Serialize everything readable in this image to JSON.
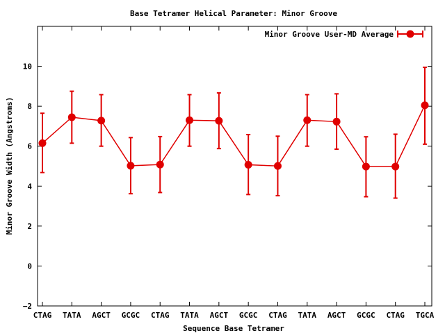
{
  "chart_data": {
    "type": "line",
    "title": "Base Tetramer Helical Parameter: Minor Groove",
    "xlabel": "Sequence Base Tetramer",
    "ylabel": "Minor Groove Width (Angstroms)",
    "ylim": [
      -2,
      12
    ],
    "yticks": [
      -2,
      0,
      2,
      4,
      6,
      8,
      10
    ],
    "grid": false,
    "legend_position": "top-right",
    "categories": [
      "CTAG",
      "TATA",
      "AGCT",
      "GCGC",
      "CTAG",
      "TATA",
      "AGCT",
      "GCGC",
      "CTAG",
      "TATA",
      "AGCT",
      "GCGC",
      "CTAG",
      "TGCA"
    ],
    "series": [
      {
        "name": "Minor Groove User-MD Average",
        "color": "#e00000",
        "values": [
          6.15,
          7.45,
          7.28,
          5.02,
          5.08,
          7.3,
          7.27,
          5.07,
          5.01,
          7.3,
          7.23,
          4.98,
          4.98,
          8.05
        ],
        "error_low": [
          4.68,
          6.15,
          6.0,
          3.62,
          3.68,
          6.0,
          5.88,
          3.58,
          3.52,
          6.0,
          5.85,
          3.47,
          3.4,
          6.1
        ],
        "error_high": [
          7.65,
          8.75,
          8.58,
          6.43,
          6.48,
          8.58,
          8.67,
          6.58,
          6.5,
          8.58,
          8.62,
          6.47,
          6.6,
          9.95
        ]
      }
    ]
  }
}
